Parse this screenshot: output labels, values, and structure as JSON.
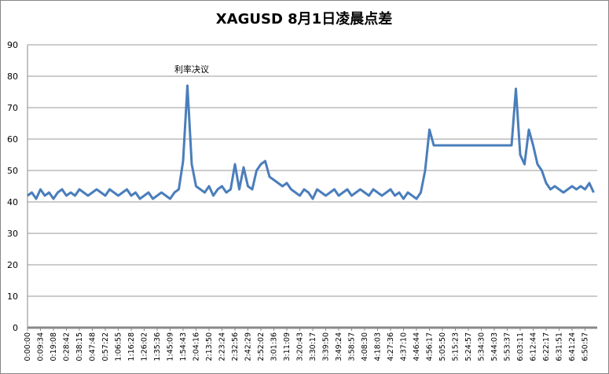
{
  "chart_data": {
    "type": "line",
    "title": "XAGUSD 8月1日凌晨点差",
    "annotation": "利率决议",
    "categories": [
      "0:00:00",
      null,
      null,
      "0:09:34",
      null,
      null,
      "0:19:08",
      null,
      null,
      "0:28:42",
      null,
      null,
      "0:38:15",
      null,
      null,
      "0:47:48",
      null,
      null,
      "0:57:22",
      null,
      null,
      "1:06:55",
      null,
      null,
      "1:16:28",
      null,
      null,
      "1:26:02",
      null,
      null,
      "1:35:36",
      null,
      null,
      "1:45:09",
      null,
      null,
      "1:54:43",
      null,
      null,
      "2:04:16",
      null,
      null,
      "2:13:50",
      null,
      null,
      "2:23:24",
      null,
      null,
      "2:32:56",
      null,
      null,
      "2:42:29",
      null,
      null,
      "2:52:02",
      null,
      null,
      "3:01:36",
      null,
      null,
      "3:11:09",
      null,
      null,
      "3:20:43",
      null,
      null,
      "3:30:17",
      null,
      null,
      "3:39:50",
      null,
      null,
      "3:49:24",
      null,
      null,
      "3:58:57",
      null,
      null,
      "4:08:30",
      null,
      null,
      "4:18:03",
      null,
      null,
      "4:27:36",
      null,
      null,
      "4:37:10",
      null,
      null,
      "4:46:44",
      null,
      null,
      "4:56:17",
      null,
      null,
      "5:05:50",
      null,
      null,
      "5:15:23",
      null,
      null,
      "5:24:57",
      null,
      null,
      "5:34:30",
      null,
      null,
      "5:44:03",
      null,
      null,
      "5:53:37",
      null,
      null,
      "6:03:11",
      null,
      null,
      "6:12:44",
      null,
      null,
      "6:22:17",
      null,
      null,
      "6:31:51",
      null,
      null,
      "6:41:24",
      null,
      null,
      "6:50:57",
      null,
      null
    ],
    "values": [
      42,
      43,
      41,
      44,
      42,
      43,
      41,
      43,
      44,
      42,
      43,
      42,
      44,
      43,
      42,
      43,
      44,
      43,
      42,
      44,
      43,
      42,
      43,
      44,
      42,
      43,
      41,
      42,
      43,
      41,
      42,
      43,
      42,
      41,
      43,
      44,
      53,
      77,
      52,
      45,
      44,
      43,
      45,
      42,
      44,
      45,
      43,
      44,
      52,
      44,
      51,
      45,
      44,
      50,
      52,
      53,
      48,
      47,
      46,
      45,
      46,
      44,
      43,
      42,
      44,
      43,
      41,
      44,
      43,
      42,
      43,
      44,
      42,
      43,
      44,
      42,
      43,
      44,
      43,
      42,
      44,
      43,
      42,
      43,
      44,
      42,
      43,
      41,
      43,
      42,
      41,
      43,
      50,
      63,
      58,
      58,
      58,
      58,
      58,
      58,
      58,
      58,
      58,
      58,
      58,
      58,
      58,
      58,
      58,
      58,
      58,
      58,
      58,
      76,
      55,
      52,
      63,
      58,
      52,
      50,
      46,
      44,
      45,
      44,
      43,
      44,
      45,
      44,
      45,
      44,
      46,
      43
    ],
    "color": "#4a7ebb",
    "ylim": [
      0,
      90
    ],
    "yticks": [
      0,
      10,
      20,
      30,
      40,
      50,
      60,
      70,
      80,
      90
    ],
    "grid": true
  }
}
